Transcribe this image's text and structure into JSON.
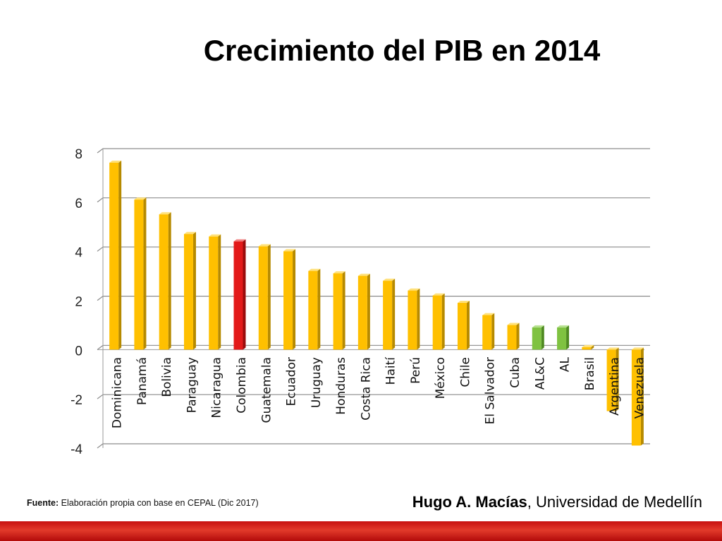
{
  "title": "Crecimiento del PIB en 2014",
  "source": {
    "label": "Fuente:",
    "text": "Elaboración propia con base en CEPAL (Dic 2017)"
  },
  "author": {
    "name": "Hugo A. Macías",
    "affiliation": ", Universidad de Medellín"
  },
  "colors": {
    "default": "#ffc000",
    "highlight": "#e31a1a",
    "aggregate": "#7fc241",
    "footer_band": "#d42020"
  },
  "chart_data": {
    "type": "bar",
    "title": "",
    "xlabel": "",
    "ylabel": "",
    "ylim": [
      -4,
      8
    ],
    "yticks": [
      8,
      6,
      4,
      2,
      0,
      -2,
      -4
    ],
    "grid": true,
    "categories": [
      "Dominicana",
      "Panamá",
      "Bolivia",
      "Paraguay",
      "Nicaragua",
      "Colombia",
      "Guatemala",
      "Ecuador",
      "Uruguay",
      "Honduras",
      "Costa Rica",
      "Haití",
      "Perú",
      "México",
      "Chile",
      "El Salvador",
      "Cuba",
      "AL&C",
      "AL",
      "Brasil",
      "Argentina",
      "Venezuela"
    ],
    "values": [
      7.6,
      6.1,
      5.5,
      4.7,
      4.6,
      4.4,
      4.2,
      4.0,
      3.2,
      3.1,
      3.0,
      2.8,
      2.4,
      2.2,
      1.9,
      1.4,
      1.0,
      0.9,
      0.9,
      0.1,
      -2.5,
      -3.9
    ],
    "bar_colors": [
      "default",
      "default",
      "default",
      "default",
      "default",
      "highlight",
      "default",
      "default",
      "default",
      "default",
      "default",
      "default",
      "default",
      "default",
      "default",
      "default",
      "default",
      "aggregate",
      "aggregate",
      "default",
      "default",
      "default"
    ]
  }
}
